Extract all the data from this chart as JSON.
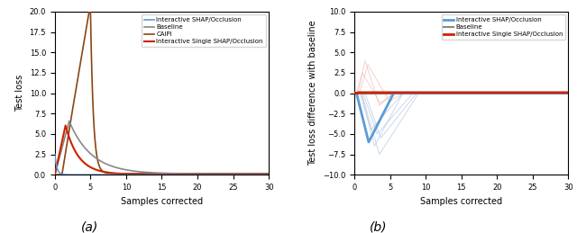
{
  "fig_width": 6.4,
  "fig_height": 2.59,
  "dpi": 100,
  "subplot_a": {
    "xlabel": "Samples corrected",
    "ylabel": "Test loss",
    "xlim": [
      0,
      30
    ],
    "ylim": [
      0.0,
      20.0
    ],
    "yticks": [
      0.0,
      2.5,
      5.0,
      7.5,
      10.0,
      12.5,
      15.0,
      17.5,
      20.0
    ],
    "xticks": [
      0,
      5,
      10,
      15,
      20,
      25,
      30
    ],
    "caption": "(a)",
    "legend": [
      {
        "label": "Interactive SHAP/Occlusion",
        "color": "#5b9bd5",
        "lw": 1.2
      },
      {
        "label": "Baseline",
        "color": "#888888",
        "lw": 1.2
      },
      {
        "label": "CAIPI",
        "color": "#8b4513",
        "lw": 1.2
      },
      {
        "label": "Interactive Single SHAP/Occlusion",
        "color": "#cc2200",
        "lw": 1.5
      }
    ]
  },
  "subplot_b": {
    "xlabel": "Samples corrected",
    "ylabel": "Test loss difference with baseline",
    "xlim": [
      0,
      30
    ],
    "ylim": [
      -10.0,
      10.0
    ],
    "yticks": [
      -10.0,
      -7.5,
      -5.0,
      -2.5,
      0.0,
      2.5,
      5.0,
      7.5,
      10.0
    ],
    "xticks": [
      0,
      5,
      10,
      15,
      20,
      25,
      30
    ],
    "caption": "(b)",
    "legend": [
      {
        "label": "Interactive SHAP/Occlusion",
        "color": "#5b9bd5",
        "lw": 2.0
      },
      {
        "label": "Baseline",
        "color": "#888888",
        "lw": 1.5
      },
      {
        "label": "Interactive Single SHAP/Occlusion",
        "color": "#cc2200",
        "lw": 2.0
      }
    ]
  }
}
